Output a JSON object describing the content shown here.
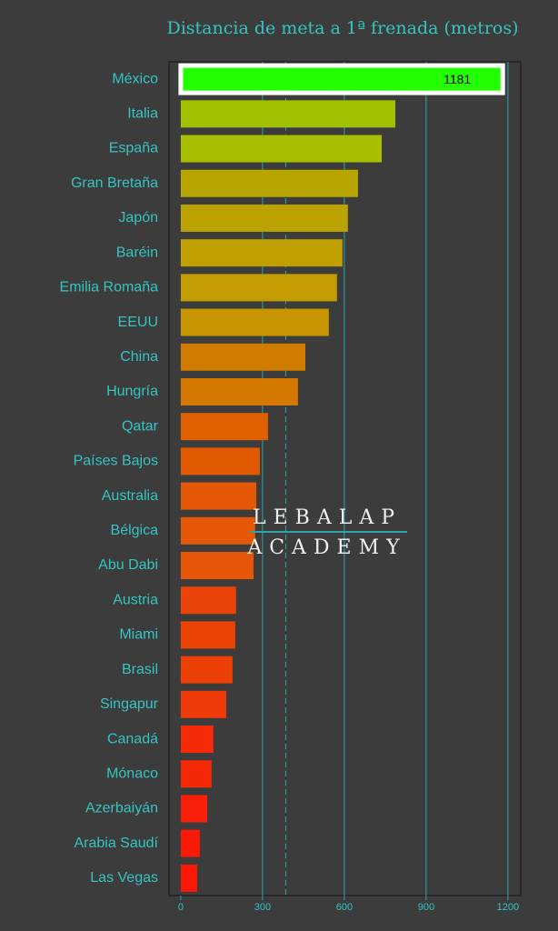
{
  "chart_data": {
    "type": "hbar",
    "title": "Distancia de meta a 1ª frenada (metros)",
    "categories": [
      "México",
      "Italia",
      "España",
      "Gran Bretaña",
      "Japón",
      "Baréin",
      "Emilia Romaña",
      "EEUU",
      "China",
      "Hungría",
      "Qatar",
      "Países Bajos",
      "Australia",
      "Bélgica",
      "Abu Dabi",
      "Austria",
      "Miami",
      "Brasil",
      "Singapur",
      "Canadá",
      "Mónaco",
      "Azerbaiyán",
      "Arabia Saudí",
      "Las Vegas"
    ],
    "values": [
      1181,
      787,
      737,
      650,
      613,
      593,
      573,
      543,
      457,
      430,
      320,
      290,
      277,
      273,
      267,
      203,
      200,
      190,
      167,
      120,
      113,
      97,
      70,
      60
    ],
    "colors": [
      "#22ff00",
      "#a0c000",
      "#a8be00",
      "#b8a600",
      "#bba200",
      "#bfa000",
      "#c29c00",
      "#c69500",
      "#d07c00",
      "#d47800",
      "#e06000",
      "#e25a00",
      "#e45808",
      "#e45808",
      "#e55608",
      "#ea4408",
      "#eb4206",
      "#ec4006",
      "#ee3a06",
      "#f52a06",
      "#f52806",
      "#f82008",
      "#fa1a08",
      "#fb1808"
    ],
    "highlight_index": 0,
    "reference_line": 385,
    "xlim": [
      -43,
      1247
    ],
    "xticks": [
      0,
      300,
      600,
      900,
      1200
    ],
    "grid": true,
    "watermark": [
      "LEBALAP",
      "ACADEMY"
    ]
  }
}
